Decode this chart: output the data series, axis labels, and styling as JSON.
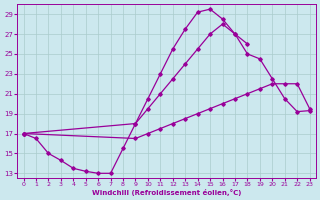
{
  "xlabel": "Windchill (Refroidissement éolien,°C)",
  "bg_color": "#cce8ee",
  "line_color": "#990099",
  "grid_color": "#aacccc",
  "xlim": [
    -0.5,
    23.5
  ],
  "ylim": [
    12.5,
    30.0
  ],
  "yticks": [
    13,
    15,
    17,
    19,
    21,
    23,
    25,
    27,
    29
  ],
  "xticks": [
    0,
    1,
    2,
    3,
    4,
    5,
    6,
    7,
    8,
    9,
    10,
    11,
    12,
    13,
    14,
    15,
    16,
    17,
    18,
    19,
    20,
    21,
    22,
    23
  ],
  "series1_x": [
    0,
    1,
    2,
    3,
    4,
    5,
    6,
    7,
    8,
    9,
    10,
    11,
    12,
    13,
    14,
    15,
    16,
    17,
    18
  ],
  "series1_y": [
    17,
    16.5,
    15,
    14.3,
    13.5,
    13.2,
    13.0,
    13.0,
    15.5,
    18.0,
    20.5,
    23.0,
    25.5,
    27.5,
    29.2,
    29.5,
    28.5,
    27.0,
    26.0
  ],
  "series2_x": [
    0,
    9,
    10,
    11,
    12,
    13,
    14,
    15,
    16,
    17,
    18,
    19,
    20,
    21,
    22,
    23
  ],
  "series2_y": [
    17,
    18.0,
    19.5,
    21.0,
    22.5,
    24.0,
    25.5,
    27.0,
    28.0,
    27.0,
    25.0,
    24.5,
    22.5,
    20.5,
    19.2,
    19.3
  ],
  "series3_x": [
    0,
    9,
    10,
    11,
    12,
    13,
    14,
    15,
    16,
    17,
    18,
    19,
    20,
    21,
    22,
    23
  ],
  "series3_y": [
    17,
    16.5,
    17.0,
    17.5,
    18.0,
    18.5,
    19.0,
    19.5,
    20.0,
    20.5,
    21.0,
    21.5,
    22.0,
    22.0,
    22.0,
    19.5
  ]
}
